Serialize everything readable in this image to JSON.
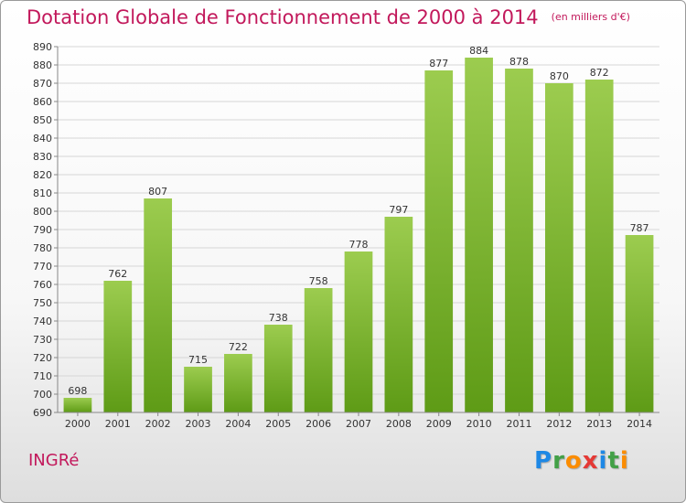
{
  "header": {
    "title": "Dotation Globale de Fonctionnement de 2000 à 2014",
    "unit": "(en milliers d'€)"
  },
  "commune": "INGRé",
  "logo": {
    "letters": [
      "P",
      "r",
      "o",
      "x",
      "i",
      "t",
      "i"
    ],
    "colors": [
      "#1e88e5",
      "#43a047",
      "#fb8c00",
      "#e53935",
      "#1e88e5",
      "#43a047",
      "#fb8c00"
    ]
  },
  "chart_data": {
    "type": "bar",
    "title": "Dotation Globale de Fonctionnement de 2000 à 2014",
    "categories": [
      "2000",
      "2001",
      "2002",
      "2003",
      "2004",
      "2005",
      "2006",
      "2007",
      "2008",
      "2009",
      "2010",
      "2011",
      "2012",
      "2013",
      "2014"
    ],
    "values": [
      698,
      762,
      807,
      715,
      722,
      738,
      758,
      778,
      797,
      877,
      884,
      878,
      870,
      872,
      787
    ],
    "xlabel": "",
    "ylabel": "",
    "ylim": [
      690,
      890
    ],
    "ytick_step": 10,
    "grid": true,
    "data_labels": true,
    "bar_color_top": "#9ccc4f",
    "bar_color_bottom": "#5e9b16"
  }
}
